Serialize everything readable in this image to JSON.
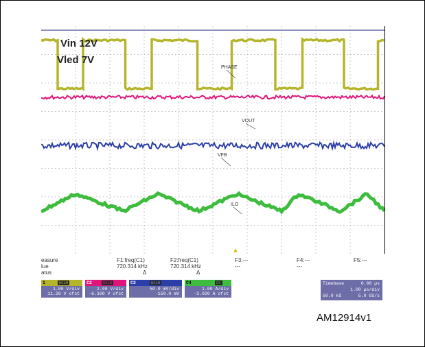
{
  "chart_data": {
    "type": "line",
    "annotations": [
      "Vin 12V",
      "Vled 7V"
    ],
    "grid": true,
    "x": {
      "divisions": 10
    },
    "series": [
      {
        "name": "PHASE",
        "color": "#b5b52c",
        "shape": "square",
        "high_level_div": 7.5,
        "low_level_div": 5.8,
        "edges_div": [
          0.48,
          1.22,
          2.45,
          3.22,
          4.55,
          5.55,
          6.82,
          7.61,
          8.82,
          9.81
        ]
      },
      {
        "name": "VOUT",
        "color": "#e0157b",
        "shape": "flat",
        "level_div": 5.5
      },
      {
        "name": "VFB",
        "color": "#2c3fa8",
        "shape": "flat",
        "level_div": 3.8
      },
      {
        "name": "ILO",
        "color": "#3ebc3e",
        "shape": "triangle",
        "peaks_div": [
          1.0,
          3.4,
          5.7,
          7.5,
          9.5
        ],
        "valleys_div": [
          0.0,
          2.4,
          4.6,
          7.0,
          8.7,
          10.0
        ],
        "peak_level_div": 2.1,
        "valley_level_div": 1.5
      }
    ]
  },
  "labels": {
    "vin": "Vin 12V",
    "vled": "Vled 7V",
    "phase": "PHASE",
    "vout": "VOUT",
    "vfb": "VFB",
    "ilo": "ILO"
  },
  "measure": {
    "row1": [
      "easure",
      "F1:freq(C1)",
      "F2:freq(C1)",
      "F3:---",
      "F4:---",
      "F5:---"
    ],
    "row2": [
      "lue",
      "720.314 kHz",
      "720.314 kHz",
      "---",
      "---",
      ""
    ],
    "row3": [
      "atus",
      "Δ",
      "Δ"
    ]
  },
  "channels": [
    {
      "num": "1",
      "color": "#b5b52c",
      "tag1": "DC1M",
      "l1": "1.00 V/div",
      "l2": "11.20 V ofst"
    },
    {
      "num": "C2",
      "color": "#e0157b",
      "tag1": "DC1M",
      "l1": "2.00 V/div",
      "l2": "-6.100 V ofst"
    },
    {
      "num": "C3",
      "color": "#2c3fa8",
      "tag1": "DC1M",
      "l1": "50.0 mV/div",
      "l2": "-150.0 mV"
    },
    {
      "num": "C4",
      "color": "#3ebc3e",
      "tag1": "DC",
      "l1": "1.00 A/div",
      "l2": "-3.020 A ofst"
    }
  ],
  "timebase": {
    "label": "Timebase",
    "value": "0.00 µs",
    "div": "1.00 µs/div",
    "samples": "50.0 kS",
    "rate": "5.0 GS/s"
  },
  "figure_code": "AM12914v1"
}
